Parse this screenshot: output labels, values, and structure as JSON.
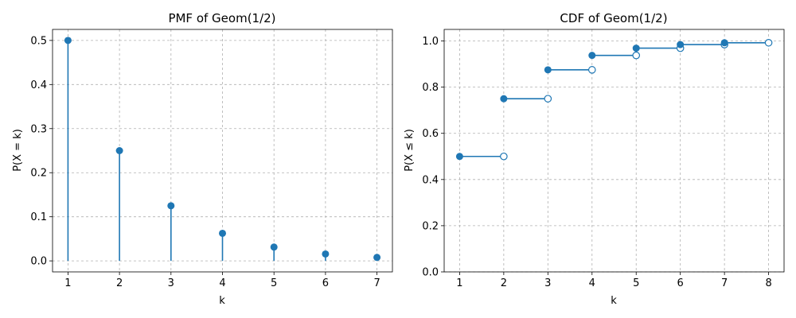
{
  "chart_data": [
    {
      "type": "stem",
      "title": "PMF of Geom(1/2)",
      "xlabel": "k",
      "ylabel": "P(X = k)",
      "x": [
        1,
        2,
        3,
        4,
        5,
        6,
        7
      ],
      "values": [
        0.5,
        0.25,
        0.125,
        0.0625,
        0.03125,
        0.015625,
        0.0078125
      ],
      "xlim": [
        0.7,
        7.3
      ],
      "ylim": [
        -0.025,
        0.525
      ],
      "xticks": [
        "1",
        "2",
        "3",
        "4",
        "5",
        "6",
        "7"
      ],
      "yticks": [
        "0.0",
        "0.1",
        "0.2",
        "0.3",
        "0.4",
        "0.5"
      ],
      "grid": true,
      "color": "#1f77b4"
    },
    {
      "type": "step",
      "title": "CDF of Geom(1/2)",
      "xlabel": "k",
      "ylabel": "P(X ≤ k)",
      "x": [
        1,
        2,
        3,
        4,
        5,
        6,
        7
      ],
      "values": [
        0.5,
        0.75,
        0.875,
        0.9375,
        0.96875,
        0.984375,
        0.9921875
      ],
      "xlim": [
        0.65,
        8.35
      ],
      "ylim": [
        0,
        1.05
      ],
      "xticks": [
        "1",
        "2",
        "3",
        "4",
        "5",
        "6",
        "7",
        "8"
      ],
      "yticks": [
        "0.0",
        "0.2",
        "0.4",
        "0.6",
        "0.8",
        "1.0"
      ],
      "grid": true,
      "color": "#1f77b4"
    }
  ]
}
